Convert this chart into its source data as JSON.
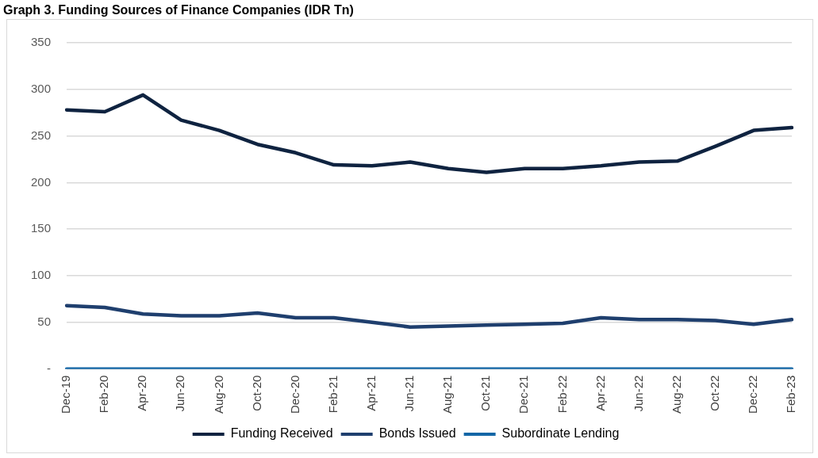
{
  "chart_data": {
    "type": "line",
    "title": "Graph 3. Funding Sources of Finance Companies (IDR Tn)",
    "categories": [
      "Dec-19",
      "Feb-20",
      "Apr-20",
      "Jun-20",
      "Aug-20",
      "Oct-20",
      "Dec-20",
      "Feb-21",
      "Apr-21",
      "Jun-21",
      "Aug-21",
      "Oct-21",
      "Dec-21",
      "Feb-22",
      "Apr-22",
      "Jun-22",
      "Aug-22",
      "Oct-22",
      "Dec-22",
      "Feb-23"
    ],
    "series": [
      {
        "name": "Funding Received",
        "color": "#0f2340",
        "values": [
          278,
          276,
          294,
          267,
          256,
          241,
          232,
          219,
          218,
          222,
          215,
          211,
          215,
          215,
          218,
          222,
          223,
          239,
          256,
          259
        ]
      },
      {
        "name": "Bonds Issued",
        "color": "#1f3f6e",
        "values": [
          68,
          66,
          59,
          57,
          57,
          60,
          55,
          55,
          50,
          45,
          46,
          47,
          48,
          49,
          55,
          53,
          53,
          52,
          48,
          53
        ]
      },
      {
        "name": "Subordinate Lending",
        "color": "#1366a6",
        "values": [
          0,
          0,
          0,
          0,
          0,
          0,
          0,
          0,
          0,
          0,
          0,
          0,
          0,
          0,
          0,
          0,
          0,
          0,
          0,
          0
        ]
      }
    ],
    "ylim": [
      0,
      350
    ],
    "yticks": [
      {
        "value": 0,
        "label": "-"
      },
      50,
      100,
      150,
      200,
      250,
      300,
      350
    ],
    "grid": "y",
    "legend": "bottom",
    "marker": "none",
    "line_style": "solid"
  }
}
